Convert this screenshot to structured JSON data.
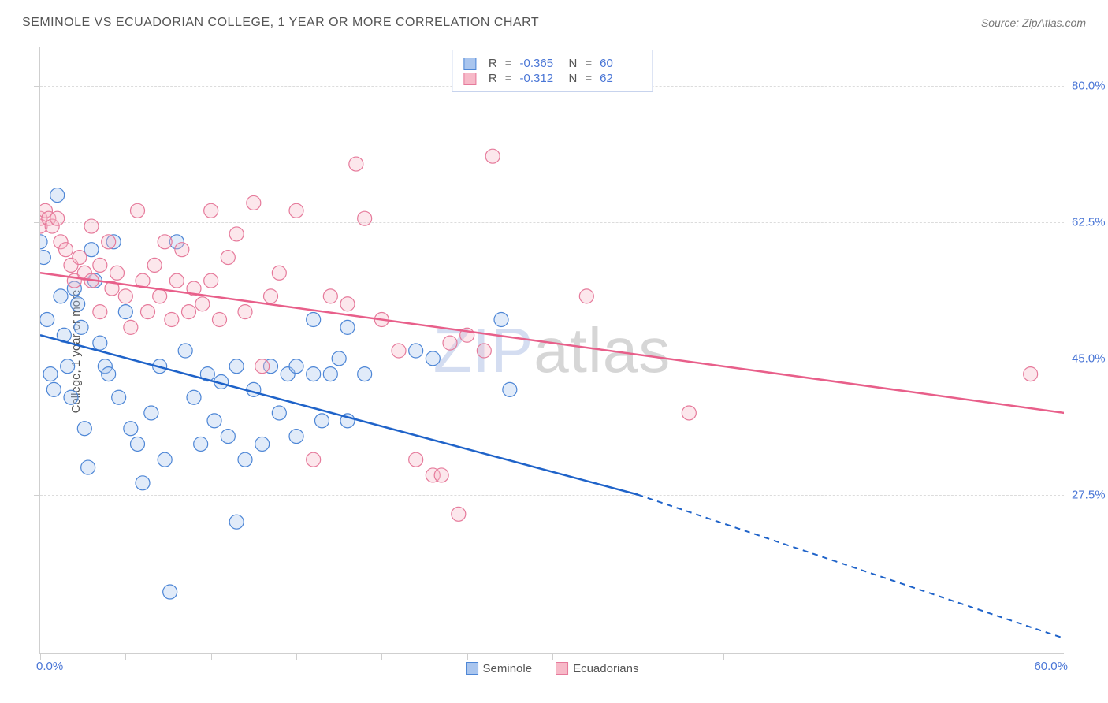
{
  "title": "SEMINOLE VS ECUADORIAN COLLEGE, 1 YEAR OR MORE CORRELATION CHART",
  "source_prefix": "Source: ",
  "source_name": "ZipAtlas.com",
  "ylabel": "College, 1 year or more",
  "watermark_a": "ZIP",
  "watermark_b": "atlas",
  "colors": {
    "series1_fill": "#a9c5ee",
    "series1_stroke": "#4d86d6",
    "series2_fill": "#f7b9c8",
    "series2_stroke": "#e67a9b",
    "line1": "#1f63c9",
    "line2": "#e85f8a",
    "axis_text": "#4a76d6",
    "title_text": "#555555",
    "grid": "#dcdcdc",
    "border": "#cfcfcf"
  },
  "chart": {
    "type": "scatter",
    "xlim": [
      0,
      60
    ],
    "ylim": [
      7,
      85
    ],
    "x_ticks": [
      0,
      5,
      10,
      15,
      20,
      25,
      30,
      35,
      40,
      45,
      50,
      55,
      60
    ],
    "y_gridlines": [
      27.5,
      45.0,
      62.5,
      80.0
    ],
    "y_labels": [
      "27.5%",
      "45.0%",
      "62.5%",
      "80.0%"
    ],
    "x_start_label": "0.0%",
    "x_end_label": "60.0%",
    "marker_radius": 9,
    "series": [
      {
        "name": "Seminole",
        "color_fill_key": "series1_fill",
        "color_stroke_key": "series1_stroke",
        "R": "-0.365",
        "N": "60",
        "points": [
          [
            0,
            60
          ],
          [
            0.2,
            58
          ],
          [
            0.4,
            50
          ],
          [
            0.6,
            43
          ],
          [
            0.8,
            41
          ],
          [
            1,
            66
          ],
          [
            1.2,
            53
          ],
          [
            1.4,
            48
          ],
          [
            1.6,
            44
          ],
          [
            1.8,
            40
          ],
          [
            2,
            54
          ],
          [
            2.2,
            52
          ],
          [
            2.4,
            49
          ],
          [
            2.6,
            36
          ],
          [
            2.8,
            31
          ],
          [
            3,
            59
          ],
          [
            3.2,
            55
          ],
          [
            3.5,
            47
          ],
          [
            3.8,
            44
          ],
          [
            4,
            43
          ],
          [
            4.3,
            60
          ],
          [
            4.6,
            40
          ],
          [
            5,
            51
          ],
          [
            5.3,
            36
          ],
          [
            5.7,
            34
          ],
          [
            6,
            29
          ],
          [
            6.5,
            38
          ],
          [
            7,
            44
          ],
          [
            7.3,
            32
          ],
          [
            7.6,
            15
          ],
          [
            8,
            60
          ],
          [
            8.5,
            46
          ],
          [
            9,
            40
          ],
          [
            9.4,
            34
          ],
          [
            9.8,
            43
          ],
          [
            10.2,
            37
          ],
          [
            10.6,
            42
          ],
          [
            11,
            35
          ],
          [
            11.5,
            24
          ],
          [
            11.5,
            44
          ],
          [
            12,
            32
          ],
          [
            12.5,
            41
          ],
          [
            13,
            34
          ],
          [
            13.5,
            44
          ],
          [
            14,
            38
          ],
          [
            14.5,
            43
          ],
          [
            15,
            44
          ],
          [
            15,
            35
          ],
          [
            16,
            43
          ],
          [
            16,
            50
          ],
          [
            16.5,
            37
          ],
          [
            17,
            43
          ],
          [
            17.5,
            45
          ],
          [
            18,
            49
          ],
          [
            18,
            37
          ],
          [
            19,
            43
          ],
          [
            22,
            46
          ],
          [
            23,
            45
          ],
          [
            27,
            50
          ],
          [
            27.5,
            41
          ]
        ],
        "trend": {
          "x1": 0,
          "y1": 48,
          "x2": 35,
          "y2": 27.5,
          "dash_x2": 60,
          "dash_y2": 9
        }
      },
      {
        "name": "Ecuadorians",
        "color_fill_key": "series2_fill",
        "color_stroke_key": "series2_stroke",
        "R": "-0.312",
        "N": "62",
        "points": [
          [
            0,
            63
          ],
          [
            0,
            62
          ],
          [
            0.3,
            64
          ],
          [
            0.5,
            63
          ],
          [
            0.7,
            62
          ],
          [
            1,
            63
          ],
          [
            1.2,
            60
          ],
          [
            1.5,
            59
          ],
          [
            1.8,
            57
          ],
          [
            2,
            55
          ],
          [
            2.3,
            58
          ],
          [
            2.6,
            56
          ],
          [
            3,
            55
          ],
          [
            3,
            62
          ],
          [
            3.5,
            51
          ],
          [
            3.5,
            57
          ],
          [
            4,
            60
          ],
          [
            4.2,
            54
          ],
          [
            4.5,
            56
          ],
          [
            5,
            53
          ],
          [
            5.3,
            49
          ],
          [
            5.7,
            64
          ],
          [
            6,
            55
          ],
          [
            6.3,
            51
          ],
          [
            6.7,
            57
          ],
          [
            7,
            53
          ],
          [
            7.3,
            60
          ],
          [
            7.7,
            50
          ],
          [
            8,
            55
          ],
          [
            8.3,
            59
          ],
          [
            8.7,
            51
          ],
          [
            9,
            54
          ],
          [
            9.5,
            52
          ],
          [
            10,
            55
          ],
          [
            10,
            64
          ],
          [
            10.5,
            50
          ],
          [
            11,
            58
          ],
          [
            11.5,
            61
          ],
          [
            12,
            51
          ],
          [
            12.5,
            65
          ],
          [
            13,
            44
          ],
          [
            13.5,
            53
          ],
          [
            14,
            56
          ],
          [
            15,
            64
          ],
          [
            16,
            32
          ],
          [
            17,
            53
          ],
          [
            18,
            52
          ],
          [
            18.5,
            70
          ],
          [
            19,
            63
          ],
          [
            20,
            50
          ],
          [
            21,
            46
          ],
          [
            22,
            32
          ],
          [
            23,
            30
          ],
          [
            23.5,
            30
          ],
          [
            24,
            47
          ],
          [
            24.5,
            25
          ],
          [
            25,
            48
          ],
          [
            26,
            46
          ],
          [
            26.5,
            71
          ],
          [
            32,
            53
          ],
          [
            38,
            38
          ],
          [
            58,
            43
          ]
        ],
        "trend": {
          "x1": 0,
          "y1": 56,
          "x2": 60,
          "y2": 38
        }
      }
    ]
  },
  "legend": {
    "item1": "Seminole",
    "item2": "Ecuadorians"
  },
  "top_legend": {
    "r_label": "R",
    "n_label": "N",
    "eq": "="
  }
}
